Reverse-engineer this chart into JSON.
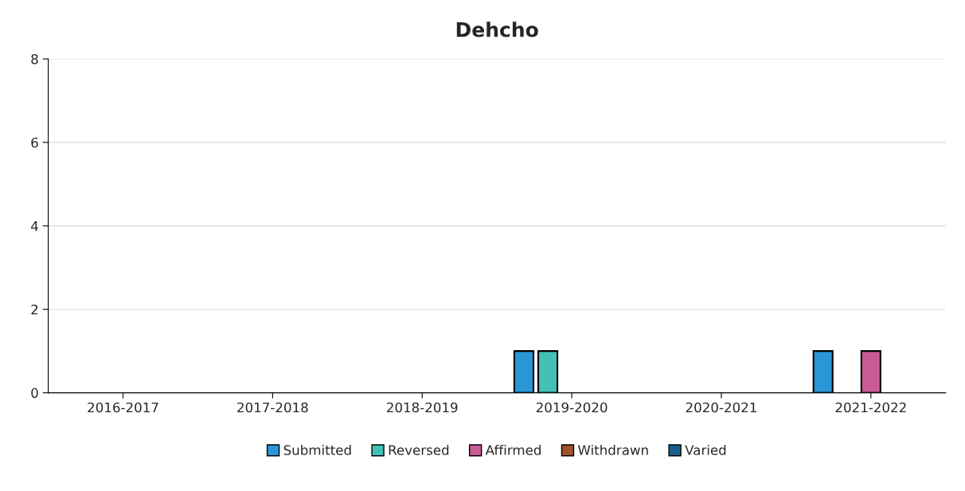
{
  "chart_data": {
    "type": "bar",
    "title": "Dehcho",
    "categories": [
      "2016-2017",
      "2017-2018",
      "2018-2019",
      "2019-2020",
      "2020-2021",
      "2021-2022"
    ],
    "series": [
      {
        "name": "Submitted",
        "color": "#2a96d6",
        "values": [
          0,
          0,
          0,
          1,
          0,
          1
        ]
      },
      {
        "name": "Reversed",
        "color": "#43c0b4",
        "values": [
          0,
          0,
          0,
          1,
          0,
          0
        ]
      },
      {
        "name": "Affirmed",
        "color": "#c85b96",
        "values": [
          0,
          0,
          0,
          0,
          0,
          1
        ]
      },
      {
        "name": "Withdrawn",
        "color": "#a0522d",
        "values": [
          0,
          0,
          0,
          0,
          0,
          0
        ]
      },
      {
        "name": "Varied",
        "color": "#1a5f8a",
        "values": [
          0,
          0,
          0,
          0,
          0,
          0
        ]
      }
    ],
    "ylim": [
      0,
      8
    ],
    "yticks": [
      0,
      2,
      4,
      6,
      8
    ],
    "grid": "y",
    "legend": "bottom"
  }
}
